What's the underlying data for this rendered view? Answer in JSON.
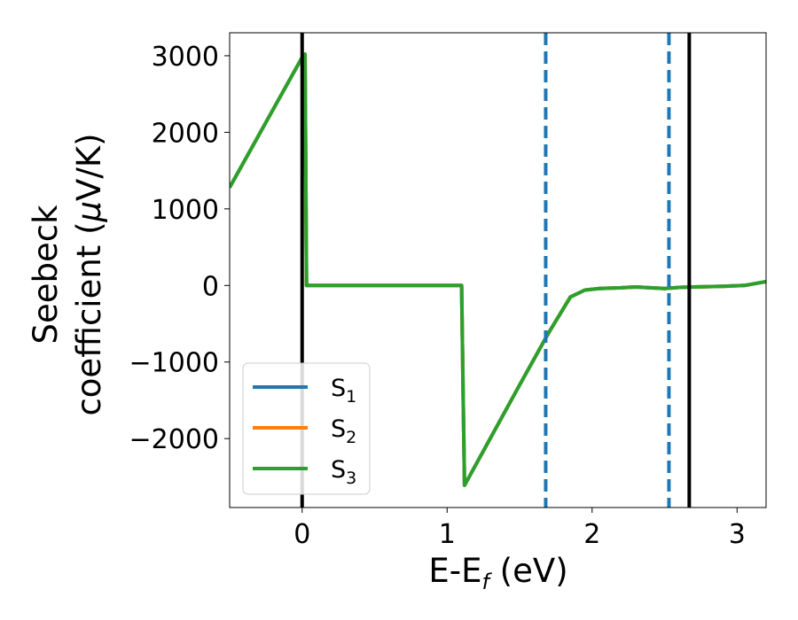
{
  "chart_data": {
    "type": "line",
    "xlabel": "E-E",
    "xlabel_sub": "f",
    "xlabel_unit": " (eV)",
    "ylabel_line1": "Seebeck",
    "ylabel_line2_prefix": "coefficient  (",
    "ylabel_mu": "μ",
    "ylabel_line2_suffix": "V/K)",
    "xlim": [
      -0.5,
      3.2
    ],
    "ylim": [
      -2900,
      3300
    ],
    "xticks": [
      0,
      1,
      2,
      3
    ],
    "xtick_labels": [
      "0",
      "1",
      "2",
      "3"
    ],
    "yticks": [
      3000,
      2000,
      1000,
      0,
      -1000,
      -2000
    ],
    "ytick_labels": [
      "3000",
      "2000",
      "1000",
      "0",
      "−1000",
      "−2000"
    ],
    "vertical_lines": [
      {
        "x": 0.0,
        "style": "solid",
        "color": "#000000"
      },
      {
        "x": 1.68,
        "style": "dashed",
        "color": "#1f77b4"
      },
      {
        "x": 2.53,
        "style": "dashed",
        "color": "#1f77b4"
      },
      {
        "x": 2.67,
        "style": "solid",
        "color": "#000000"
      }
    ],
    "legend_position": "lower-left",
    "series": [
      {
        "name": "S",
        "sub": "1",
        "color": "#1f77b4",
        "x": [
          -0.5,
          0.0,
          0.02,
          0.03,
          0.5,
          1.1,
          1.11,
          1.12,
          1.5,
          1.7,
          1.85,
          1.95,
          2.05,
          2.2,
          2.3,
          2.4,
          2.5,
          2.6,
          2.7,
          2.9,
          3.05,
          3.2
        ],
        "y": [
          1280,
          2980,
          3020,
          0,
          0,
          0,
          -1400,
          -2610,
          -1300,
          -620,
          -150,
          -60,
          -40,
          -30,
          -20,
          -30,
          -40,
          -25,
          -20,
          -10,
          0,
          50
        ]
      },
      {
        "name": "S",
        "sub": "2",
        "color": "#ff7f0e",
        "x": [
          -0.5,
          0.0,
          0.02,
          0.03,
          0.5,
          1.1,
          1.11,
          1.12,
          1.5,
          1.7,
          1.85,
          1.95,
          2.05,
          2.2,
          2.3,
          2.4,
          2.5,
          2.6,
          2.7,
          2.9,
          3.05,
          3.2
        ],
        "y": [
          1280,
          2980,
          3020,
          0,
          0,
          0,
          -1400,
          -2610,
          -1300,
          -620,
          -150,
          -60,
          -40,
          -30,
          -20,
          -30,
          -40,
          -25,
          -20,
          -10,
          0,
          50
        ]
      },
      {
        "name": "S",
        "sub": "3",
        "color": "#2ca02c",
        "x": [
          -0.5,
          0.0,
          0.02,
          0.03,
          0.5,
          1.1,
          1.11,
          1.12,
          1.5,
          1.7,
          1.85,
          1.95,
          2.05,
          2.2,
          2.3,
          2.4,
          2.5,
          2.6,
          2.7,
          2.9,
          3.05,
          3.2
        ],
        "y": [
          1280,
          2980,
          3020,
          0,
          0,
          0,
          -1400,
          -2610,
          -1300,
          -620,
          -150,
          -60,
          -40,
          -30,
          -20,
          -30,
          -40,
          -25,
          -20,
          -10,
          0,
          50
        ]
      }
    ],
    "grid": false
  }
}
